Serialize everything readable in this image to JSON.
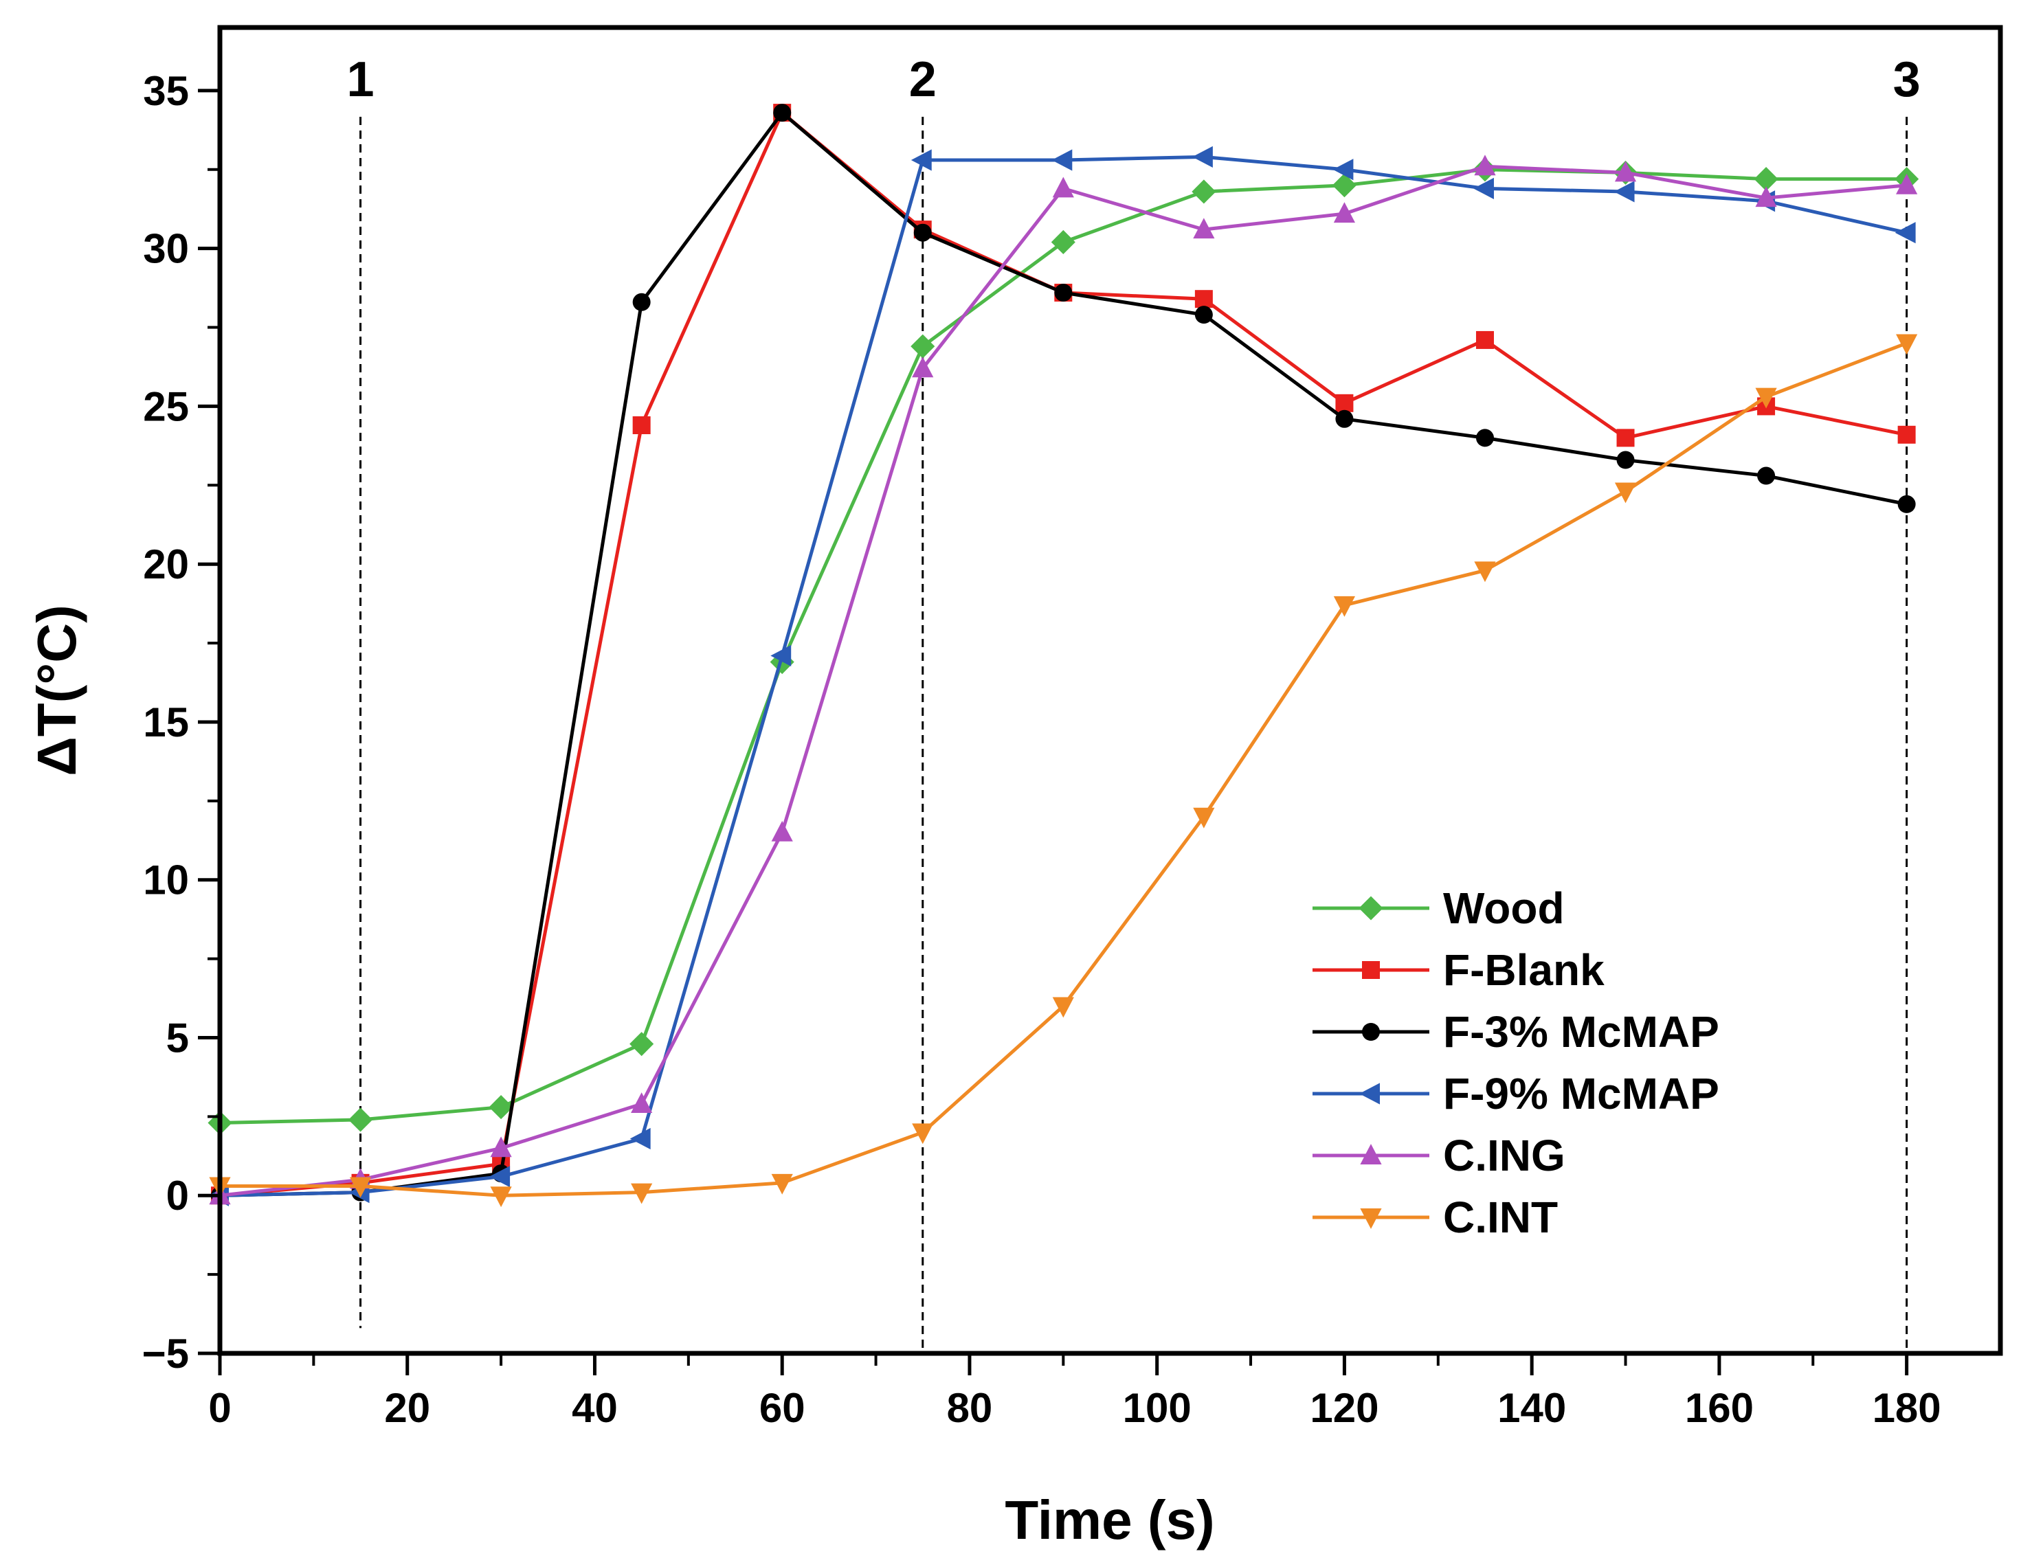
{
  "chart_data": {
    "type": "line",
    "title": "",
    "xlabel": "Time (s)",
    "ylabel": "ΔT(°C)",
    "xlim": [
      0,
      190
    ],
    "ylim": [
      -5,
      37
    ],
    "xticks": [
      0,
      20,
      40,
      60,
      80,
      100,
      120,
      140,
      160,
      180
    ],
    "yticks": [
      -5,
      0,
      5,
      10,
      15,
      20,
      25,
      30,
      35
    ],
    "x": [
      0,
      15,
      30,
      45,
      60,
      75,
      90,
      105,
      120,
      135,
      150,
      165,
      180
    ],
    "markers": [
      {
        "label": "1",
        "x": 15
      },
      {
        "label": "2",
        "x": 75
      },
      {
        "label": "3",
        "x": 180
      }
    ],
    "legend_position": "bottom-right",
    "series": [
      {
        "name": "Wood",
        "color": "#4db848",
        "marker": "diamond",
        "values": [
          2.3,
          2.4,
          2.8,
          4.8,
          16.9,
          26.9,
          30.2,
          31.8,
          32.0,
          32.5,
          32.4,
          32.2,
          32.2
        ]
      },
      {
        "name": "F-Blank",
        "color": "#e8211d",
        "marker": "square",
        "values": [
          0.0,
          0.4,
          1.0,
          24.4,
          34.3,
          30.6,
          28.6,
          28.4,
          25.1,
          27.1,
          24.0,
          25.0,
          24.1
        ]
      },
      {
        "name": "F-3% McMAP",
        "color": "#000000",
        "marker": "circle",
        "values": [
          0.0,
          0.1,
          0.7,
          28.3,
          34.3,
          30.5,
          28.6,
          27.9,
          24.6,
          24.0,
          23.3,
          22.8,
          21.9
        ]
      },
      {
        "name": "F-9% McMAP",
        "color": "#2a5bb5",
        "marker": "triangle-left",
        "values": [
          0.0,
          0.1,
          0.6,
          1.8,
          17.1,
          32.8,
          32.8,
          32.9,
          32.5,
          31.9,
          31.8,
          31.5,
          30.5
        ]
      },
      {
        "name": "C.ING",
        "color": "#b04fc0",
        "marker": "triangle-up",
        "values": [
          0.0,
          0.5,
          1.5,
          2.9,
          11.5,
          26.2,
          31.9,
          30.6,
          31.1,
          32.6,
          32.4,
          31.6,
          32.0
        ]
      },
      {
        "name": "C.INT",
        "color": "#f08a24",
        "marker": "triangle-down",
        "values": [
          0.3,
          0.3,
          0.0,
          0.1,
          0.4,
          2.0,
          6.0,
          12.0,
          18.7,
          19.8,
          22.3,
          25.3,
          27.0
        ]
      }
    ]
  }
}
